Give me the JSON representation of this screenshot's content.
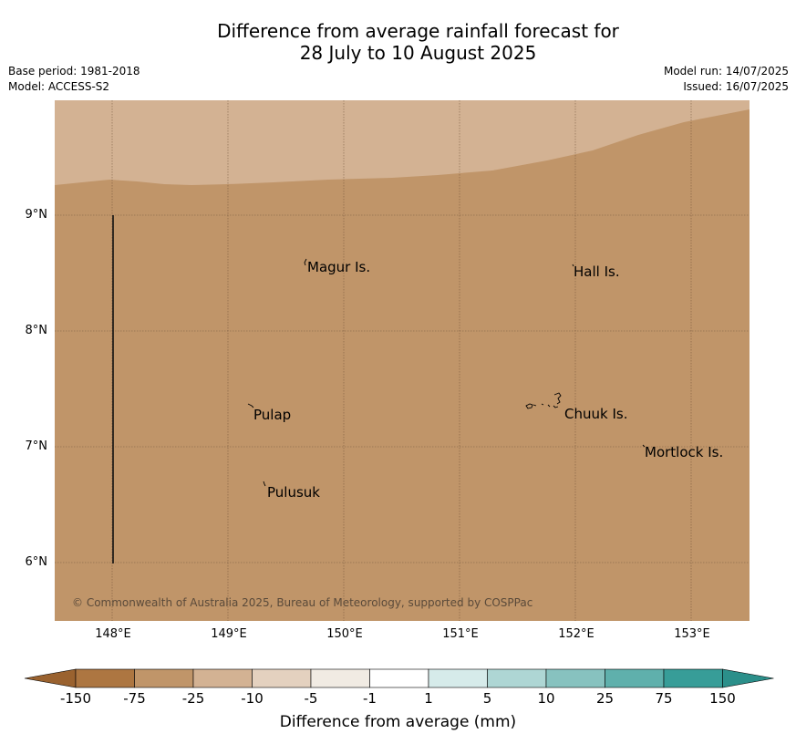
{
  "title": {
    "line1": "Difference from average rainfall forecast for",
    "line2": "28 July to 10 August 2025"
  },
  "meta_left": {
    "base_period": "Base period: 1981-2018",
    "model": "Model: ACCESS-S2"
  },
  "meta_right": {
    "model_run": "Model run: 14/07/2025",
    "issued": "Issued: 16/07/2025"
  },
  "map": {
    "lat_labels": [
      "9°N",
      "8°N",
      "7°N",
      "6°N"
    ],
    "lon_labels": [
      "148°E",
      "149°E",
      "150°E",
      "151°E",
      "152°E",
      "153°E"
    ],
    "places": [
      "Magur Is.",
      "Hall Is.",
      "Pulap",
      "Chuuk Is.",
      "Mortlock Is.",
      "Pulusuk"
    ],
    "copyright": "© Commonwealth of Australia 2025, Bureau of Meteorology, supported by COSPPac",
    "colors": {
      "dominant": "#c09569",
      "north_band": "#d3b293"
    }
  },
  "colorbar": {
    "labels": [
      "-150",
      "-75",
      "-25",
      "-10",
      "-5",
      "-1",
      "1",
      "5",
      "10",
      "25",
      "75",
      "150"
    ],
    "colors": [
      "#ad7641",
      "#c09569",
      "#d3b293",
      "#e4d1bf",
      "#f1ebe3",
      "#ffffff",
      "#d6ebea",
      "#aed6d4",
      "#87c2bf",
      "#5fb0ac",
      "#379d98"
    ],
    "under_color": "#9a622f",
    "over_color": "#2b8f8a",
    "title": "Difference from average (mm)"
  }
}
